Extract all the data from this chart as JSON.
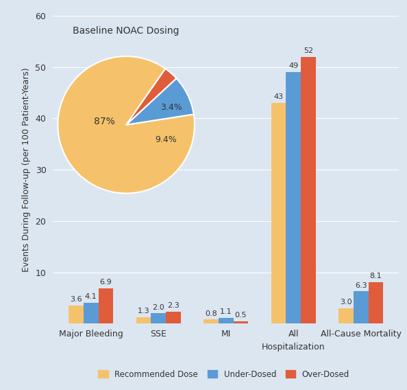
{
  "background_color": "#dce6f1",
  "bar_categories": [
    "Major Bleeding",
    "SSE",
    "MI",
    "All",
    "All-Cause Mortality"
  ],
  "recommended": [
    3.6,
    1.3,
    0.8,
    43,
    3.0
  ],
  "under_dosed": [
    4.1,
    2.0,
    1.1,
    49,
    6.3
  ],
  "over_dosed": [
    6.9,
    2.3,
    0.5,
    52,
    8.1
  ],
  "color_recommended": "#f5c26b",
  "color_under": "#5b9bd5",
  "color_over": "#e05c3a",
  "ylabel": "Events During Follow-up (per 100 Patient-Years)",
  "ylim": [
    0,
    60
  ],
  "yticks": [
    0,
    10,
    20,
    30,
    40,
    50,
    60
  ],
  "pie_values": [
    87.0,
    9.4,
    3.4
  ],
  "pie_colors": [
    "#f5c26b",
    "#5b9bd5",
    "#e05c3a"
  ],
  "pie_title": "Baseline NOAC Dosing",
  "legend_labels": [
    "Recommended Dose",
    "Under-Dosed",
    "Over-Dosed"
  ],
  "bar_width": 0.22,
  "title_fontsize": 10,
  "label_fontsize": 9,
  "tick_fontsize": 9,
  "bar_label_fontsize": 8,
  "pie_label_fontsize": 10
}
